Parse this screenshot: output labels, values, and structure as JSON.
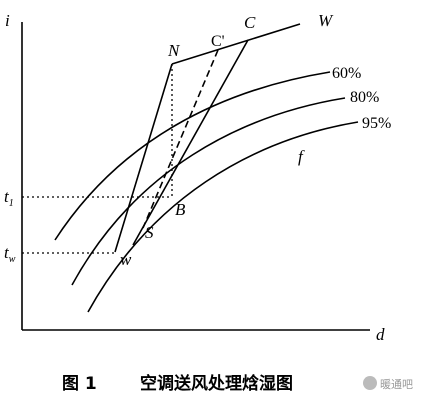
{
  "axes": {
    "y_label": "i",
    "x_label": "d"
  },
  "points": {
    "N": "N",
    "C": "C",
    "C_prime": "C'",
    "B": "B",
    "S": "S",
    "w": "w"
  },
  "lines": {
    "W": "W",
    "f": "f"
  },
  "curves": [
    "60%",
    "80%",
    "95%"
  ],
  "ticks": [
    {
      "main": "t",
      "sub": "1"
    },
    {
      "main": "t",
      "sub": "w"
    }
  ],
  "caption": {
    "number": "图 1",
    "title": "空调送风处理焓湿图"
  },
  "watermark": "暖通吧"
}
